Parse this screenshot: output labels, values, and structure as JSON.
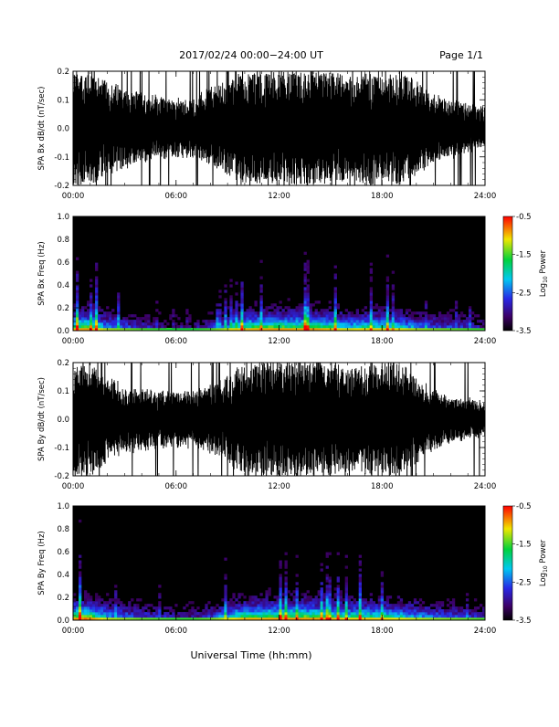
{
  "header": {
    "title": "2017/02/24  00:00−24:00 UT",
    "page_label": "Page 1/1"
  },
  "footer": {
    "x_axis_label": "Universal Time (hh:mm)"
  },
  "chart_data": [
    {
      "type": "line",
      "title": "",
      "ylabel": "SPA Bx dB/dt (nT/sec)",
      "xlabel": "",
      "x_range_hours": [
        0,
        24
      ],
      "x_ticks": [
        "00:00",
        "06:00",
        "12:00",
        "18:00",
        "24:00"
      ],
      "ylim": [
        -0.2,
        0.2
      ],
      "y_ticks": [
        "-0.2",
        "-0.1",
        "0.0",
        "0.1",
        "0.2"
      ],
      "series": [
        {
          "trace_color": "#000000",
          "hours": [
            0,
            1,
            2,
            3,
            4,
            5,
            6,
            7,
            8,
            9,
            10,
            11,
            12,
            13,
            14,
            15,
            16,
            17,
            18,
            19,
            20,
            21,
            22,
            23,
            24
          ],
          "envelope_abs": [
            0.2,
            0.2,
            0.16,
            0.14,
            0.12,
            0.11,
            0.1,
            0.1,
            0.14,
            0.16,
            0.2,
            0.2,
            0.2,
            0.2,
            0.2,
            0.2,
            0.18,
            0.2,
            0.2,
            0.2,
            0.16,
            0.12,
            0.1,
            0.08,
            0.07
          ]
        }
      ]
    },
    {
      "type": "heatmap",
      "title": "",
      "ylabel": "SPA Bx Freq (Hz)",
      "xlabel": "",
      "x_range_hours": [
        0,
        24
      ],
      "x_ticks": [
        "00:00",
        "06:00",
        "12:00",
        "18:00",
        "24:00"
      ],
      "ylim": [
        0.0,
        1.0
      ],
      "y_ticks": [
        "0.0",
        "0.2",
        "0.4",
        "0.6",
        "0.8",
        "1.0"
      ],
      "colorbar": {
        "label": "Log",
        "label_sub": "10",
        "label_suffix": " Power",
        "range": [
          -3.5,
          -0.5
        ],
        "ticks": [
          "-0.5",
          "-1.5",
          "-2.5",
          "-3.5"
        ]
      },
      "activity_hours": [
        0,
        1,
        2,
        3,
        4,
        5,
        6,
        7,
        8,
        9,
        10,
        11,
        12,
        13,
        14,
        15,
        16,
        17,
        18,
        19,
        20,
        21,
        22,
        23,
        24
      ],
      "activity_level": [
        0.85,
        0.9,
        0.55,
        0.45,
        0.35,
        0.3,
        0.25,
        0.25,
        0.35,
        0.6,
        0.8,
        0.85,
        0.9,
        0.85,
        0.9,
        0.8,
        0.65,
        0.75,
        0.75,
        0.7,
        0.55,
        0.45,
        0.4,
        0.35,
        0.3
      ]
    },
    {
      "type": "line",
      "title": "",
      "ylabel": "SPA By dB/dt (nT/sec)",
      "xlabel": "",
      "x_range_hours": [
        0,
        24
      ],
      "x_ticks": [
        "00:00",
        "06:00",
        "12:00",
        "18:00",
        "24:00"
      ],
      "ylim": [
        -0.2,
        0.2
      ],
      "y_ticks": [
        "-0.2",
        "-0.1",
        "0.0",
        "0.1",
        "0.2"
      ],
      "series": [
        {
          "trace_color": "#000000",
          "hours": [
            0,
            1,
            2,
            3,
            4,
            5,
            6,
            7,
            8,
            9,
            10,
            11,
            12,
            13,
            14,
            15,
            16,
            17,
            18,
            19,
            20,
            21,
            22,
            23,
            24
          ],
          "envelope_abs": [
            0.2,
            0.2,
            0.15,
            0.12,
            0.11,
            0.1,
            0.1,
            0.1,
            0.12,
            0.15,
            0.2,
            0.2,
            0.2,
            0.2,
            0.2,
            0.2,
            0.18,
            0.19,
            0.2,
            0.2,
            0.15,
            0.1,
            0.08,
            0.07,
            0.06
          ]
        }
      ]
    },
    {
      "type": "heatmap",
      "title": "",
      "ylabel": "SPA By Freq (Hz)",
      "xlabel": "",
      "x_range_hours": [
        0,
        24
      ],
      "x_ticks": [
        "00:00",
        "06:00",
        "12:00",
        "18:00",
        "24:00"
      ],
      "ylim": [
        0.0,
        1.0
      ],
      "y_ticks": [
        "0.0",
        "0.2",
        "0.4",
        "0.6",
        "0.8",
        "1.0"
      ],
      "colorbar": {
        "label": "Log",
        "label_sub": "10",
        "label_suffix": " Power",
        "range": [
          -3.5,
          -0.5
        ],
        "ticks": [
          "-0.5",
          "-1.5",
          "-2.5",
          "-3.5"
        ]
      },
      "activity_hours": [
        0,
        1,
        2,
        3,
        4,
        5,
        6,
        7,
        8,
        9,
        10,
        11,
        12,
        13,
        14,
        15,
        16,
        17,
        18,
        19,
        20,
        21,
        22,
        23,
        24
      ],
      "activity_level": [
        0.9,
        0.95,
        0.6,
        0.5,
        0.4,
        0.35,
        0.3,
        0.3,
        0.4,
        0.65,
        0.85,
        0.85,
        0.9,
        0.9,
        0.9,
        0.85,
        0.75,
        0.8,
        0.75,
        0.7,
        0.6,
        0.5,
        0.45,
        0.4,
        0.35
      ]
    }
  ]
}
